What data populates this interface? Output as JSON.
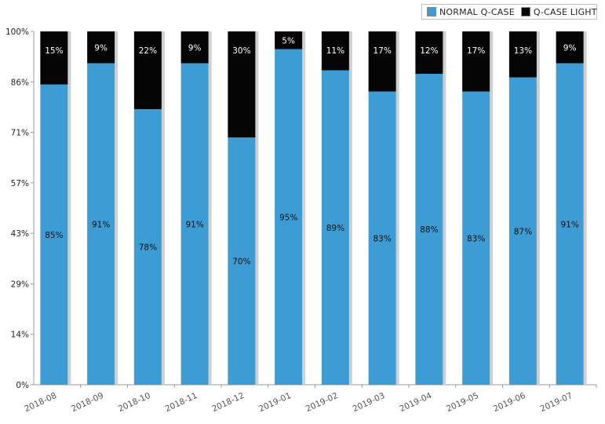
{
  "legend": {
    "items": [
      {
        "label": "NORMAL Q-CASE",
        "color": "#3c9cd3"
      },
      {
        "label": "Q-CASE LIGHT",
        "color": "#050505"
      }
    ]
  },
  "chart_data": {
    "type": "bar",
    "stacked": true,
    "percent_stacked": true,
    "categories": [
      "2018-08",
      "2018-09",
      "2018-10",
      "2018-11",
      "2018-12",
      "2019-01",
      "2019-02",
      "2019-03",
      "2019-04",
      "2019-05",
      "2019-06",
      "2019-07"
    ],
    "series": [
      {
        "name": "NORMAL Q-CASE",
        "color": "#3c9cd3",
        "values": [
          85,
          91,
          78,
          91,
          70,
          95,
          89,
          83,
          88,
          83,
          87,
          91
        ]
      },
      {
        "name": "Q-CASE LIGHT",
        "color": "#050505",
        "values": [
          15,
          9,
          22,
          9,
          30,
          5,
          11,
          17,
          12,
          17,
          13,
          9
        ]
      }
    ],
    "y_ticks": [
      "0%",
      "14%",
      "29%",
      "43%",
      "57%",
      "71%",
      "86%",
      "100%"
    ],
    "ylim": [
      0,
      100
    ],
    "legend_position": "top-right",
    "grid": false
  }
}
